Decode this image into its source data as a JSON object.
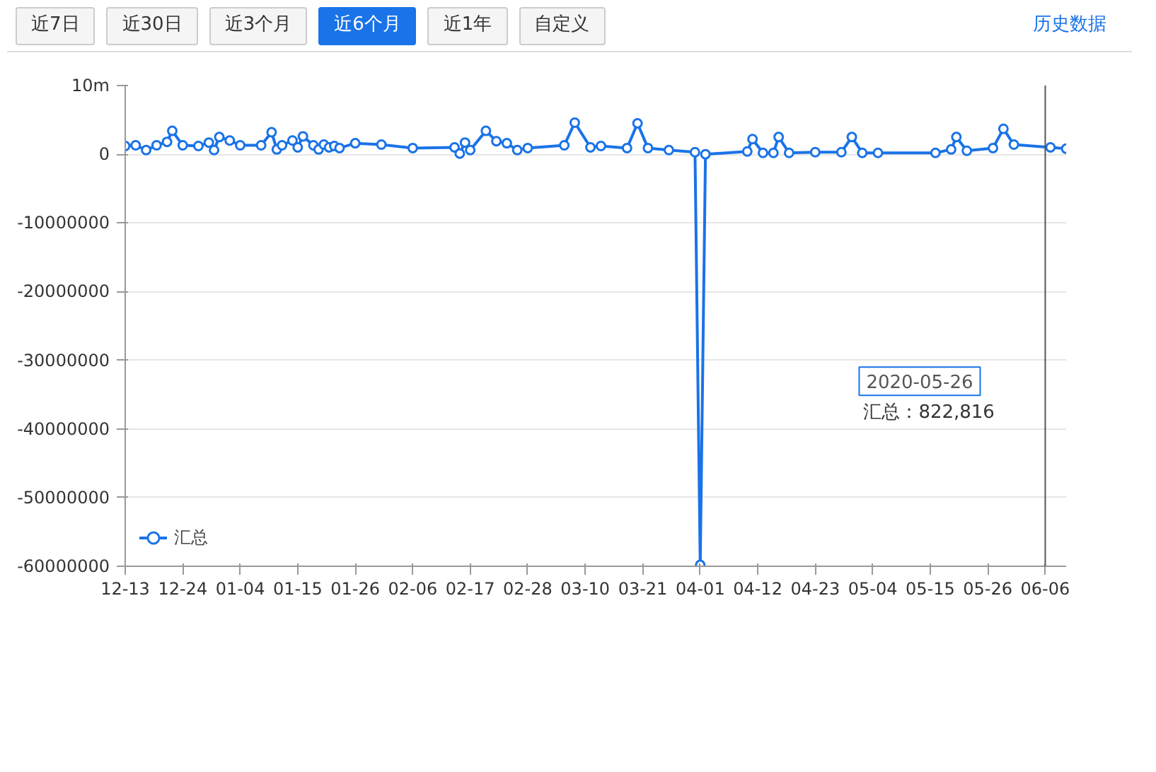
{
  "chart_data": {
    "type": "line",
    "annotations": [
      "近7日",
      "近30日",
      "近3个月",
      "近6个月",
      "近1年",
      "自定义",
      "历史数据",
      "2020-05-26",
      "汇总：822,816"
    ],
    "x": [
      "2019-12-13",
      "2019-12-15",
      "2019-12-17",
      "2019-12-19",
      "2019-12-21",
      "2019-12-22",
      "2019-12-24",
      "2019-12-27",
      "2019-12-29",
      "2019-12-30",
      "2019-12-31",
      "2020-01-02",
      "2020-01-04",
      "2020-01-08",
      "2020-01-10",
      "2020-01-11",
      "2020-01-12",
      "2020-01-14",
      "2020-01-15",
      "2020-01-16",
      "2020-01-18",
      "2020-01-19",
      "2020-01-20",
      "2020-01-21",
      "2020-01-22",
      "2020-01-23",
      "2020-01-26",
      "2020-01-31",
      "2020-02-06",
      "2020-02-14",
      "2020-02-15",
      "2020-02-16",
      "2020-02-17",
      "2020-02-20",
      "2020-02-22",
      "2020-02-24",
      "2020-02-26",
      "2020-02-28",
      "2020-03-06",
      "2020-03-08",
      "2020-03-11",
      "2020-03-13",
      "2020-03-18",
      "2020-03-20",
      "2020-03-22",
      "2020-03-26",
      "2020-03-31",
      "2020-04-01",
      "2020-04-02",
      "2020-04-10",
      "2020-04-11",
      "2020-04-13",
      "2020-04-15",
      "2020-04-16",
      "2020-04-18",
      "2020-04-23",
      "2020-04-28",
      "2020-04-30",
      "2020-05-02",
      "2020-05-05",
      "2020-05-16",
      "2020-05-19",
      "2020-05-20",
      "2020-05-22",
      "2020-05-27",
      "2020-05-29",
      "2020-05-31",
      "2020-06-07",
      "2020-06-10"
    ],
    "series": [
      {
        "name": "汇总",
        "color": "#1a73e8",
        "values": [
          1200000,
          1300000,
          600000,
          1300000,
          1800000,
          3400000,
          1300000,
          1200000,
          1700000,
          600000,
          2500000,
          2000000,
          1300000,
          1300000,
          3200000,
          700000,
          1300000,
          2000000,
          1000000,
          2600000,
          1300000,
          700000,
          1400000,
          1000000,
          1200000,
          900000,
          1600000,
          1400000,
          900000,
          1000000,
          100000,
          1700000,
          600000,
          3400000,
          1900000,
          1600000,
          600000,
          900000,
          1300000,
          4600000,
          1000000,
          1200000,
          900000,
          4500000,
          900000,
          600000,
          300000,
          -59800000,
          0,
          400000,
          2200000,
          200000,
          200000,
          2500000,
          200000,
          300000,
          300000,
          2500000,
          200000,
          200000,
          200000,
          700000,
          2500000,
          500000,
          900000,
          3700000,
          1400000,
          1000000,
          800000
        ]
      }
    ],
    "xlim": [
      "2019-12-13",
      "2020-06-10"
    ],
    "xticks": [
      {
        "value": "2019-12-13",
        "label": "12-13"
      },
      {
        "value": "2019-12-24",
        "label": "12-24"
      },
      {
        "value": "2020-01-04",
        "label": "01-04"
      },
      {
        "value": "2020-01-15",
        "label": "01-15"
      },
      {
        "value": "2020-01-26",
        "label": "01-26"
      },
      {
        "value": "2020-02-06",
        "label": "02-06"
      },
      {
        "value": "2020-02-17",
        "label": "02-17"
      },
      {
        "value": "2020-02-28",
        "label": "02-28"
      },
      {
        "value": "2020-03-10",
        "label": "03-10"
      },
      {
        "value": "2020-03-21",
        "label": "03-21"
      },
      {
        "value": "2020-04-01",
        "label": "04-01"
      },
      {
        "value": "2020-04-12",
        "label": "04-12"
      },
      {
        "value": "2020-04-23",
        "label": "04-23"
      },
      {
        "value": "2020-05-04",
        "label": "05-04"
      },
      {
        "value": "2020-05-15",
        "label": "05-15"
      },
      {
        "value": "2020-05-26",
        "label": "05-26"
      },
      {
        "value": "2020-06-06",
        "label": "06-06"
      }
    ],
    "ylim": [
      -60000000,
      10000000
    ],
    "yticks": [
      -60000000,
      -50000000,
      -40000000,
      -30000000,
      -20000000,
      -10000000,
      0,
      {
        "value": 10000000,
        "label": "10m"
      }
    ],
    "ref_lines": [
      {
        "axis": "x",
        "value": "2020-06-06",
        "label": null,
        "color": "#555555"
      }
    ],
    "grid": "y",
    "legend": "bottom",
    "marker": "circle",
    "line_style": "solid"
  }
}
